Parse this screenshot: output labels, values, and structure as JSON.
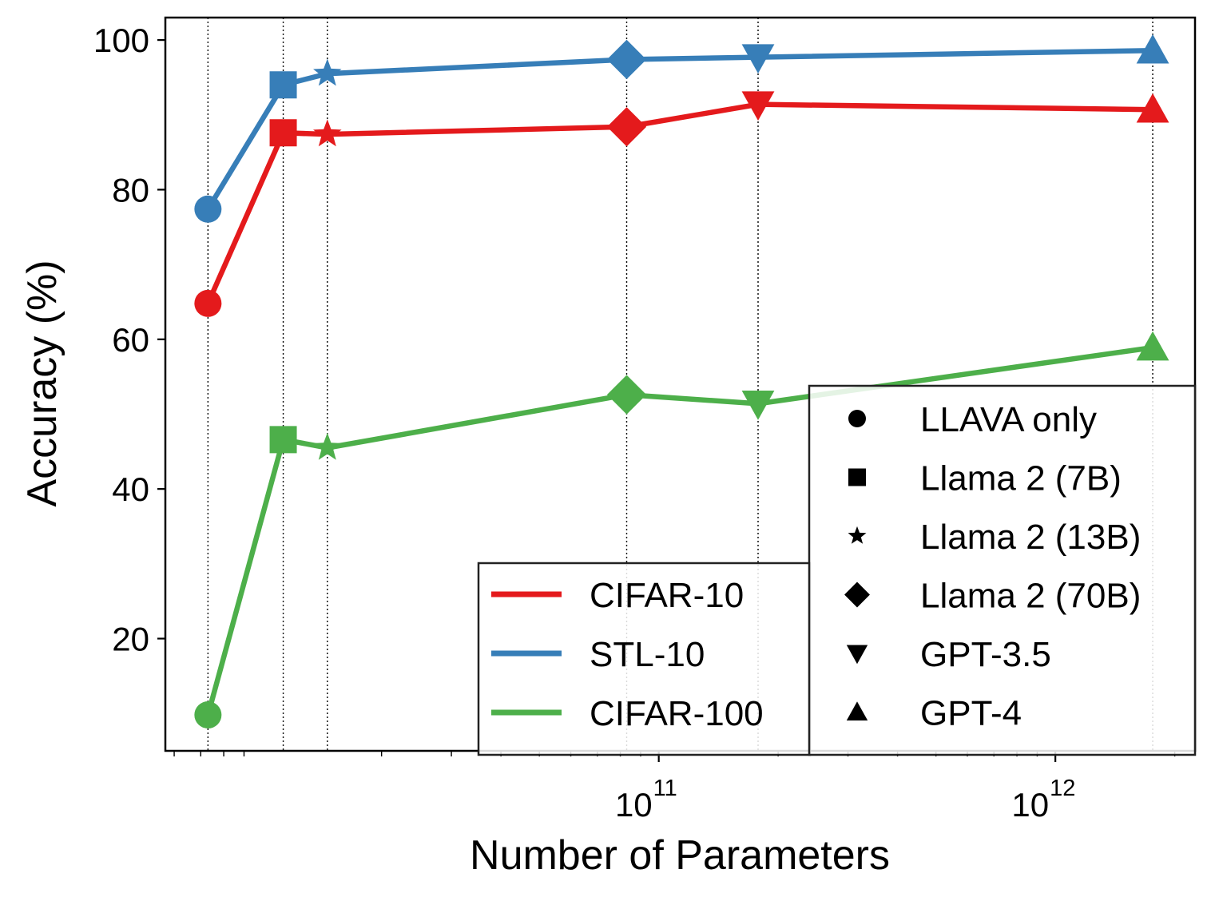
{
  "chart_data": {
    "type": "line",
    "title": "",
    "xlabel": "Number of Parameters",
    "ylabel": "Accuracy (%)",
    "xscale": "log",
    "xlim": [
      5700000000.0,
      2250000000000.0
    ],
    "ylim": [
      5,
      103
    ],
    "x_tick_labels": [
      {
        "base": "10",
        "exp": "11",
        "value": 100000000000.0
      },
      {
        "base": "10",
        "exp": "12",
        "value": 1000000000000.0
      }
    ],
    "y_ticks": [
      20,
      40,
      60,
      80,
      100
    ],
    "y_tick_labels": [
      "20",
      "40",
      "60",
      "80",
      "100"
    ],
    "models": [
      {
        "name": "LLAVA only",
        "marker": "circle",
        "params": 7300000000.0
      },
      {
        "name": "Llama 2 (7B)",
        "marker": "square",
        "params": 11300000000.0
      },
      {
        "name": "Llama 2 (13B)",
        "marker": "star",
        "params": 14600000000.0
      },
      {
        "name": "Llama 2 (70B)",
        "marker": "diamond",
        "params": 83000000000.0
      },
      {
        "name": "GPT-3.5",
        "marker": "triangle-down",
        "params": 178000000000.0
      },
      {
        "name": "GPT-4",
        "marker": "triangle-up",
        "params": 1760000000000.0
      }
    ],
    "series": [
      {
        "name": "CIFAR-10",
        "color": "#e41a1c",
        "values": [
          64.8,
          87.6,
          87.4,
          88.4,
          91.4,
          90.7
        ]
      },
      {
        "name": "STL-10",
        "color": "#377eb8",
        "values": [
          77.4,
          94.0,
          95.5,
          97.4,
          97.7,
          98.6
        ]
      },
      {
        "name": "CIFAR-100",
        "color": "#4daf4a",
        "values": [
          9.8,
          46.6,
          45.5,
          52.6,
          51.4,
          58.9
        ]
      }
    ],
    "grid": "dotted vertical lines at each model",
    "dataset_legend_position": "lower-center",
    "marker_legend_position": "lower-right"
  }
}
